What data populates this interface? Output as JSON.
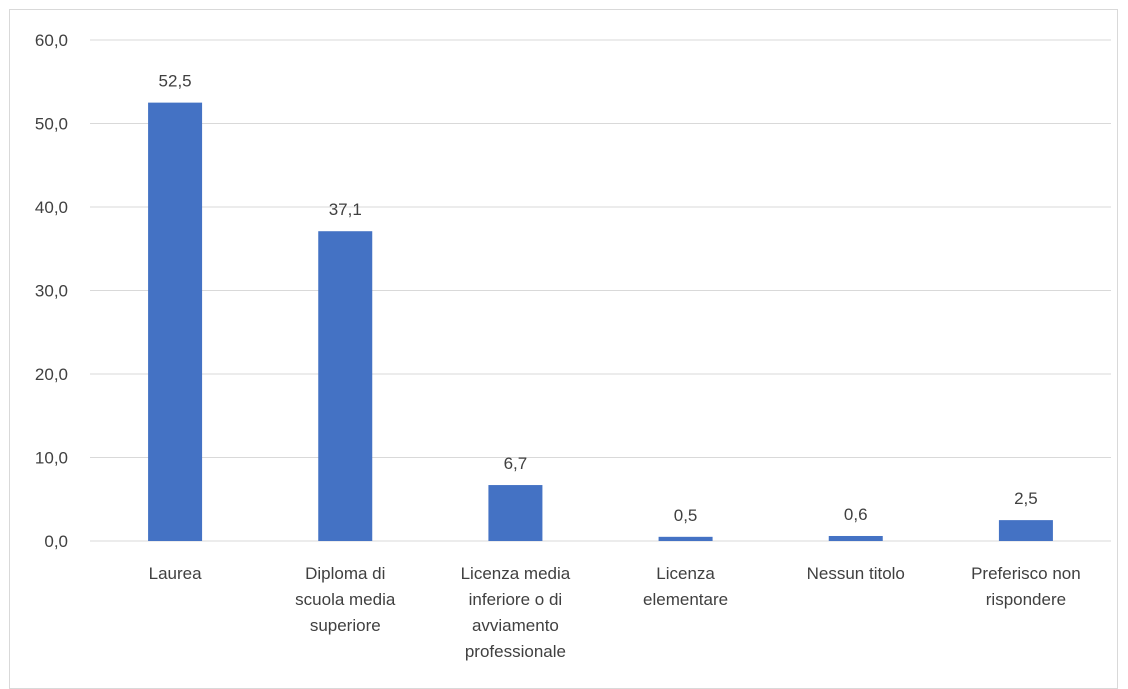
{
  "chart_data": {
    "type": "bar",
    "categories": [
      [
        "Laurea"
      ],
      [
        "Diploma di",
        "scuola media",
        "superiore"
      ],
      [
        "Licenza media",
        "inferiore o di",
        "avviamento",
        "professionale"
      ],
      [
        "Licenza",
        "elementare"
      ],
      [
        "Nessun titolo"
      ],
      [
        "Preferisco non",
        "rispondere"
      ]
    ],
    "values": [
      52.5,
      37.1,
      6.7,
      0.5,
      0.6,
      2.5
    ],
    "value_labels": [
      "52,5",
      "37,1",
      "6,7",
      "0,5",
      "0,6",
      "2,5"
    ],
    "y_ticks": [
      {
        "value": 0,
        "label": "0,0"
      },
      {
        "value": 10,
        "label": "10,0"
      },
      {
        "value": 20,
        "label": "20,0"
      },
      {
        "value": 30,
        "label": "30,0"
      },
      {
        "value": 40,
        "label": "40,0"
      },
      {
        "value": 50,
        "label": "50,0"
      },
      {
        "value": 60,
        "label": "60,0"
      }
    ],
    "ylim": [
      0,
      60
    ],
    "grid": true,
    "legend": "none",
    "bar_color": "#4472c4",
    "grid_color": "#d9d9d9",
    "title": "",
    "xlabel": "",
    "ylabel": ""
  }
}
